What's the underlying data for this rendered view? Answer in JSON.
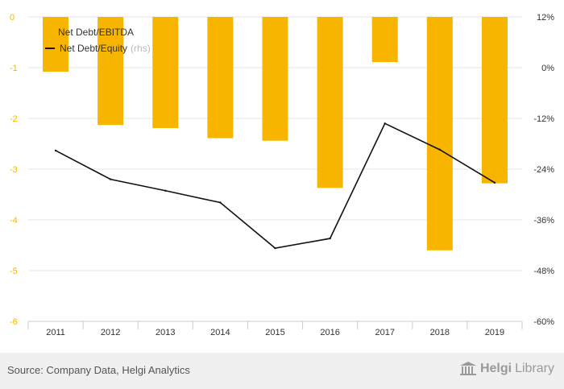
{
  "chart_data": {
    "type": "bar",
    "categories": [
      "2011",
      "2012",
      "2013",
      "2014",
      "2015",
      "2016",
      "2017",
      "2018",
      "2019"
    ],
    "series": [
      {
        "name": "Net Debt/EBITDA",
        "type": "bar",
        "axis": "left",
        "color": "#f7b500",
        "values": [
          -1.08,
          -2.13,
          -2.19,
          -2.39,
          -2.44,
          -3.37,
          -0.89,
          -4.6,
          -3.28
        ]
      },
      {
        "name": "Net Debt/Equity",
        "type": "line",
        "axis": "right",
        "color": "#111111",
        "values": [
          -19.6,
          -26.4,
          -29.1,
          -31.9,
          -42.7,
          -40.4,
          -13.2,
          -19.4,
          -27.2
        ]
      }
    ],
    "y_left": {
      "min": -6,
      "max": 0,
      "ticks": [
        "0",
        "-1",
        "-2",
        "-3",
        "-4",
        "-5",
        "-6"
      ],
      "tick_color": "#f7b500"
    },
    "y_right": {
      "min": -60,
      "max": 12,
      "ticks": [
        "12%",
        "0%",
        "-12%",
        "-24%",
        "-36%",
        "-48%",
        "-60%"
      ]
    },
    "legend": {
      "placement": "top-left",
      "bar_label": "Net Debt/EBITDA",
      "line_label": "Net Debt/Equity",
      "line_suffix": "(rhs)"
    },
    "grid": true
  },
  "footer": {
    "source": "Source: Company Data, Helgi Analytics",
    "brand_part1": "Helgi",
    "brand_part2": "Library"
  }
}
